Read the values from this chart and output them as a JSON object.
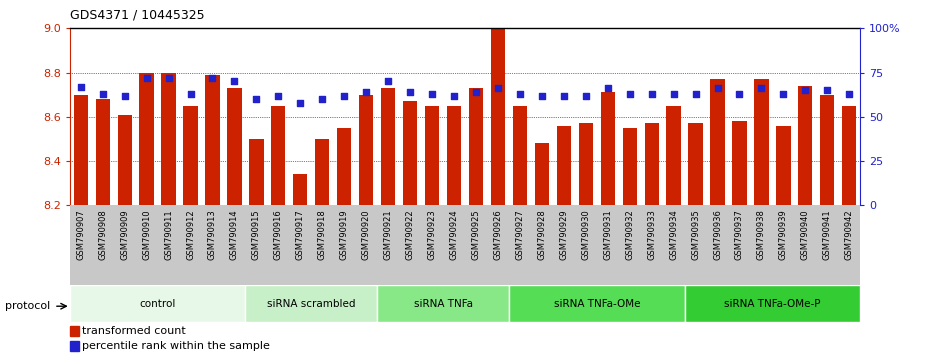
{
  "title": "GDS4371 / 10445325",
  "samples": [
    "GSM790907",
    "GSM790908",
    "GSM790909",
    "GSM790910",
    "GSM790911",
    "GSM790912",
    "GSM790913",
    "GSM790914",
    "GSM790915",
    "GSM790916",
    "GSM790917",
    "GSM790918",
    "GSM790919",
    "GSM790920",
    "GSM790921",
    "GSM790922",
    "GSM790923",
    "GSM790924",
    "GSM790925",
    "GSM790926",
    "GSM790927",
    "GSM790928",
    "GSM790929",
    "GSM790930",
    "GSM790931",
    "GSM790932",
    "GSM790933",
    "GSM790934",
    "GSM790935",
    "GSM790936",
    "GSM790937",
    "GSM790938",
    "GSM790939",
    "GSM790940",
    "GSM790941",
    "GSM790942"
  ],
  "bar_values": [
    8.7,
    8.68,
    8.61,
    8.8,
    8.8,
    8.65,
    8.79,
    8.73,
    8.5,
    8.65,
    8.34,
    8.5,
    8.55,
    8.7,
    8.73,
    8.67,
    8.65,
    8.65,
    8.73,
    9.0,
    8.65,
    8.48,
    8.56,
    8.57,
    8.71,
    8.55,
    8.57,
    8.65,
    8.57,
    8.77,
    8.58,
    8.77,
    8.56,
    8.74,
    8.7,
    8.65
  ],
  "percentile_values": [
    67,
    63,
    62,
    72,
    72,
    63,
    72,
    70,
    60,
    62,
    58,
    60,
    62,
    64,
    70,
    64,
    63,
    62,
    64,
    66,
    63,
    62,
    62,
    62,
    66,
    63,
    63,
    63,
    63,
    66,
    63,
    66,
    63,
    65,
    65,
    63
  ],
  "ylim_left": [
    8.2,
    9.0
  ],
  "ylim_right": [
    0,
    100
  ],
  "yticks_left": [
    8.2,
    8.4,
    8.6,
    8.8,
    9.0
  ],
  "yticks_right": [
    0,
    25,
    50,
    75,
    100
  ],
  "ytick_labels_right": [
    "0",
    "25",
    "50",
    "75",
    "100%"
  ],
  "bar_color": "#cc2200",
  "dot_color": "#2222cc",
  "groups": [
    {
      "label": "control",
      "start": 0,
      "end": 8,
      "color": "#e8f8e8"
    },
    {
      "label": "siRNA scrambled",
      "start": 8,
      "end": 14,
      "color": "#c8f0c8"
    },
    {
      "label": "siRNA TNFa",
      "start": 14,
      "end": 20,
      "color": "#88e888"
    },
    {
      "label": "siRNA TNFa-OMe",
      "start": 20,
      "end": 28,
      "color": "#55dd55"
    },
    {
      "label": "siRNA TNFa-OMe-P",
      "start": 28,
      "end": 36,
      "color": "#33cc33"
    }
  ],
  "protocol_label": "protocol",
  "strip_color": "#c8c8c8"
}
